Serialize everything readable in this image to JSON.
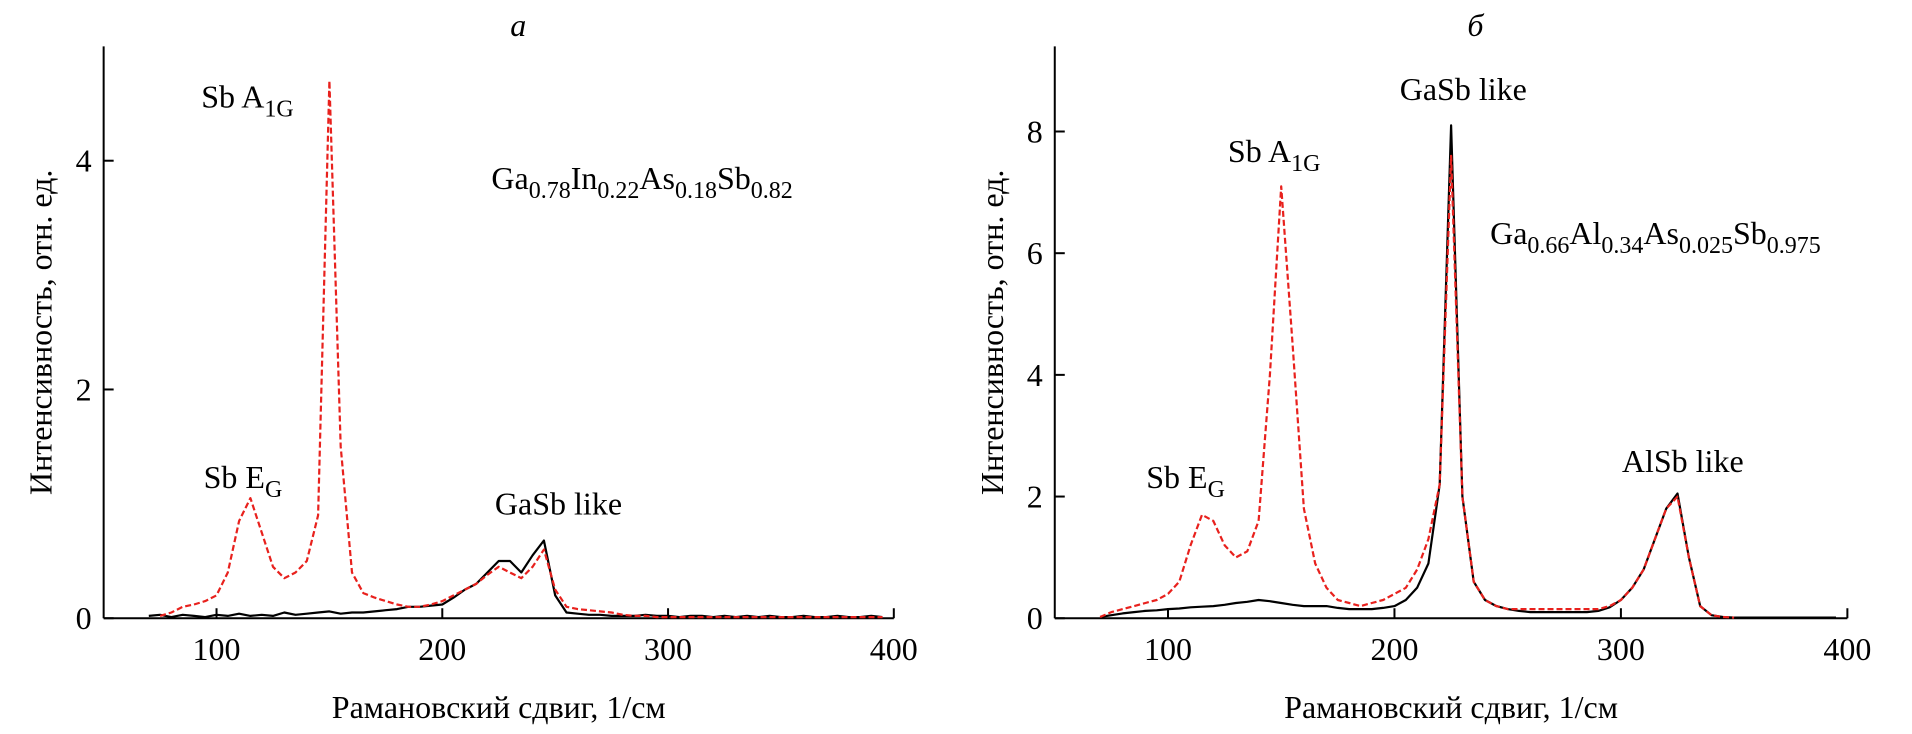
{
  "chart_data": [
    {
      "type": "line",
      "title": "а",
      "x_label": "Рамановский сдвиг, 1/см",
      "y_label": "Интенсивность, отн. ед.",
      "xlim": [
        50,
        400
      ],
      "xticks": [
        100,
        200,
        300,
        400
      ],
      "ylim": [
        0,
        5
      ],
      "yticks": [
        0,
        2,
        4
      ],
      "x": [
        70,
        75,
        80,
        85,
        90,
        95,
        100,
        105,
        110,
        115,
        120,
        125,
        130,
        135,
        140,
        145,
        150,
        155,
        160,
        165,
        170,
        175,
        180,
        185,
        190,
        195,
        200,
        205,
        210,
        215,
        220,
        225,
        230,
        235,
        240,
        245,
        250,
        255,
        260,
        265,
        270,
        275,
        280,
        285,
        290,
        295,
        300,
        305,
        310,
        315,
        320,
        325,
        330,
        335,
        340,
        345,
        350,
        355,
        360,
        365,
        370,
        375,
        380,
        385,
        390,
        395
      ],
      "series": [
        {
          "color": "#000000",
          "style": "solid",
          "values": [
            0.02,
            0.03,
            0.01,
            0.03,
            0.02,
            0.01,
            0.03,
            0.02,
            0.04,
            0.02,
            0.03,
            0.02,
            0.05,
            0.03,
            0.04,
            0.05,
            0.06,
            0.04,
            0.05,
            0.05,
            0.06,
            0.07,
            0.08,
            0.1,
            0.1,
            0.11,
            0.12,
            0.18,
            0.25,
            0.3,
            0.4,
            0.5,
            0.5,
            0.4,
            0.55,
            0.68,
            0.2,
            0.05,
            0.04,
            0.03,
            0.03,
            0.02,
            0.02,
            0.02,
            0.03,
            0.02,
            0.02,
            0.01,
            0.02,
            0.02,
            0.01,
            0.02,
            0.01,
            0.02,
            0.01,
            0.02,
            0.01,
            0.01,
            0.02,
            0.01,
            0.01,
            0.02,
            0.01,
            0.01,
            0.02,
            0.01
          ]
        },
        {
          "color": "#e8211d",
          "style": "dashed",
          "values": [
            null,
            0.02,
            0.05,
            0.1,
            0.12,
            0.15,
            0.2,
            0.4,
            0.85,
            1.05,
            0.75,
            0.45,
            0.35,
            0.4,
            0.5,
            0.9,
            4.7,
            1.5,
            0.4,
            0.22,
            0.18,
            0.15,
            0.12,
            0.1,
            0.1,
            0.12,
            0.15,
            0.2,
            0.25,
            0.3,
            0.38,
            0.45,
            0.4,
            0.35,
            0.45,
            0.6,
            0.25,
            0.1,
            0.08,
            0.07,
            0.06,
            0.05,
            0.03,
            0.02,
            0.02,
            0.01,
            0.01,
            0.01,
            0.01,
            0.01,
            0.01,
            0.01,
            0.01,
            0.01,
            0.01,
            0.01,
            0.01,
            0.01,
            0.01,
            0.01,
            0.01,
            0.01,
            0.01,
            0.01,
            0.01,
            0.01
          ]
        }
      ],
      "annotations": [
        {
          "parts": [
            "Sb A",
            "1G"
          ]
        },
        {
          "parts": [
            "Sb E",
            "G"
          ]
        },
        {
          "parts": [
            "GaSb like"
          ]
        },
        {
          "parts": [
            "Ga",
            "0.78",
            "In",
            "0.22",
            "As",
            "0.18",
            "Sb",
            "0.82"
          ]
        }
      ]
    },
    {
      "type": "line",
      "title": "б",
      "x_label": "Рамановский сдвиг, 1/см",
      "y_label": "Интенсивность, отн. ед.",
      "xlim": [
        50,
        400
      ],
      "xticks": [
        100,
        200,
        300,
        400
      ],
      "ylim": [
        0,
        9.4
      ],
      "yticks": [
        0,
        2,
        4,
        6,
        8
      ],
      "x": [
        70,
        75,
        80,
        85,
        90,
        95,
        100,
        105,
        110,
        115,
        120,
        125,
        130,
        135,
        140,
        145,
        150,
        155,
        160,
        165,
        170,
        175,
        180,
        185,
        190,
        195,
        200,
        205,
        210,
        215,
        220,
        225,
        230,
        235,
        240,
        245,
        250,
        255,
        260,
        265,
        270,
        275,
        280,
        285,
        290,
        295,
        300,
        305,
        310,
        315,
        320,
        325,
        330,
        335,
        340,
        345,
        350,
        355,
        360,
        365,
        370,
        375,
        380,
        385,
        390,
        395
      ],
      "series": [
        {
          "color": "#000000",
          "style": "solid",
          "values": [
            0.02,
            0.05,
            0.08,
            0.1,
            0.12,
            0.13,
            0.15,
            0.16,
            0.18,
            0.19,
            0.2,
            0.22,
            0.25,
            0.27,
            0.3,
            0.28,
            0.25,
            0.22,
            0.2,
            0.2,
            0.2,
            0.17,
            0.15,
            0.15,
            0.15,
            0.17,
            0.2,
            0.3,
            0.5,
            0.9,
            2.2,
            8.1,
            2.0,
            0.6,
            0.3,
            0.2,
            0.15,
            0.12,
            0.1,
            0.1,
            0.1,
            0.1,
            0.1,
            0.1,
            0.12,
            0.18,
            0.3,
            0.5,
            0.8,
            1.3,
            1.8,
            2.05,
            1.0,
            0.2,
            0.05,
            0.02,
            0.01,
            0.01,
            0.01,
            0.01,
            0.01,
            0.01,
            0.01,
            0.01,
            0.01,
            0.01
          ]
        },
        {
          "color": "#e8211d",
          "style": "dashed",
          "values": [
            0.02,
            0.1,
            0.15,
            0.2,
            0.25,
            0.3,
            0.4,
            0.6,
            1.2,
            1.7,
            1.6,
            1.2,
            1.0,
            1.1,
            1.6,
            4.0,
            7.1,
            4.5,
            1.8,
            0.9,
            0.5,
            0.3,
            0.25,
            0.2,
            0.25,
            0.3,
            0.4,
            0.5,
            0.8,
            1.3,
            2.2,
            7.6,
            2.0,
            0.6,
            0.3,
            0.2,
            0.15,
            0.15,
            0.15,
            0.15,
            0.15,
            0.15,
            0.15,
            0.15,
            0.15,
            0.2,
            0.3,
            0.5,
            0.8,
            1.3,
            1.8,
            2.0,
            1.0,
            0.2,
            0.05,
            0.02,
            0.01,
            null,
            null,
            null,
            null,
            null,
            null,
            null,
            null,
            null
          ]
        }
      ],
      "annotations": [
        {
          "parts": [
            "GaSb like"
          ]
        },
        {
          "parts": [
            "Sb A",
            "1G"
          ]
        },
        {
          "parts": [
            "Sb E",
            "G"
          ]
        },
        {
          "parts": [
            "AlSb like"
          ]
        },
        {
          "parts": [
            "Ga",
            "0.66",
            "Al",
            "0.34",
            "As",
            "0.025",
            "Sb",
            "0.975"
          ]
        }
      ]
    }
  ]
}
